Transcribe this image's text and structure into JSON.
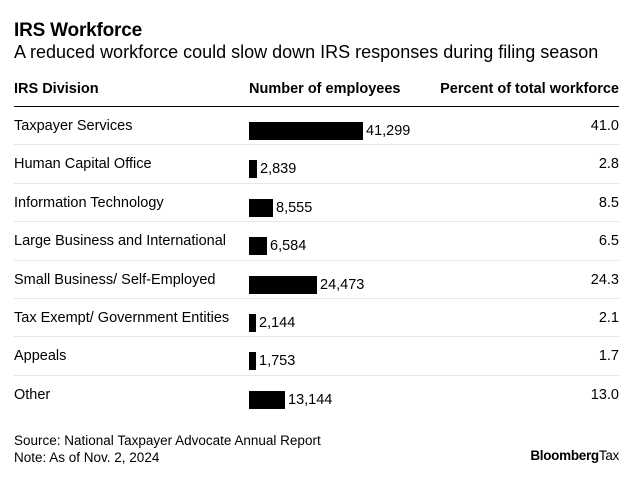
{
  "title": "IRS Workforce",
  "subtitle": "A reduced workforce could slow down IRS responses during filing season",
  "headers": {
    "division": "IRS Division",
    "employees": "Number of employees",
    "percent": "Percent of total workforce"
  },
  "chart_data": {
    "type": "table",
    "title": "IRS Workforce",
    "columns": [
      "IRS Division",
      "Number of employees",
      "Percent of total workforce"
    ],
    "max_value": 41299,
    "rows": [
      {
        "division": "Taxpayer Services",
        "employees": 41299,
        "employees_label": "41,299",
        "percent": "41.0"
      },
      {
        "division": "Human Capital Office",
        "employees": 2839,
        "employees_label": "2,839",
        "percent": "2.8"
      },
      {
        "division": "Information Technology",
        "employees": 8555,
        "employees_label": "8,555",
        "percent": "8.5"
      },
      {
        "division": "Large Business and International",
        "employees": 6584,
        "employees_label": "6,584",
        "percent": "6.5"
      },
      {
        "division": "Small Business/ Self-Employed",
        "employees": 24473,
        "employees_label": "24,473",
        "percent": "24.3"
      },
      {
        "division": "Tax Exempt/ Government Entities",
        "employees": 2144,
        "employees_label": "2,144",
        "percent": "2.1"
      },
      {
        "division": "Appeals",
        "employees": 1753,
        "employees_label": "1,753",
        "percent": "1.7"
      },
      {
        "division": "Other",
        "employees": 13144,
        "employees_label": "13,144",
        "percent": "13.0"
      }
    ]
  },
  "footer": {
    "source": "Source: National Taxpayer Advocate Annual Report",
    "note": "Note: As of Nov. 2, 2024",
    "logo_bold": "Bloomberg",
    "logo_light": "Tax"
  },
  "colors": {
    "bar": "#000000",
    "divider": "#e6e6e6"
  }
}
